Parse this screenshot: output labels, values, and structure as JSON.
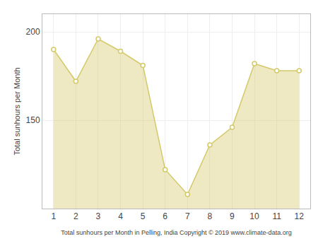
{
  "chart_data": {
    "type": "area",
    "x": [
      1,
      2,
      3,
      4,
      5,
      6,
      7,
      8,
      9,
      10,
      11,
      12
    ],
    "values": [
      190,
      172,
      196,
      189,
      181,
      122,
      108,
      136,
      146,
      182,
      178,
      178
    ],
    "color": "#d4c96a",
    "marker": "circle",
    "xlabel": "Total sunhours per Month in Pelling, India Copyright © 2019 www.climate-data.org",
    "ylabel": "Total sunhours per Month",
    "xlim": [
      0.5,
      12.5
    ],
    "ylim": [
      100,
      210
    ],
    "xticks": [
      1,
      2,
      3,
      4,
      5,
      6,
      7,
      8,
      9,
      10,
      11,
      12
    ],
    "yticks": [
      150,
      200
    ],
    "grid": true
  }
}
